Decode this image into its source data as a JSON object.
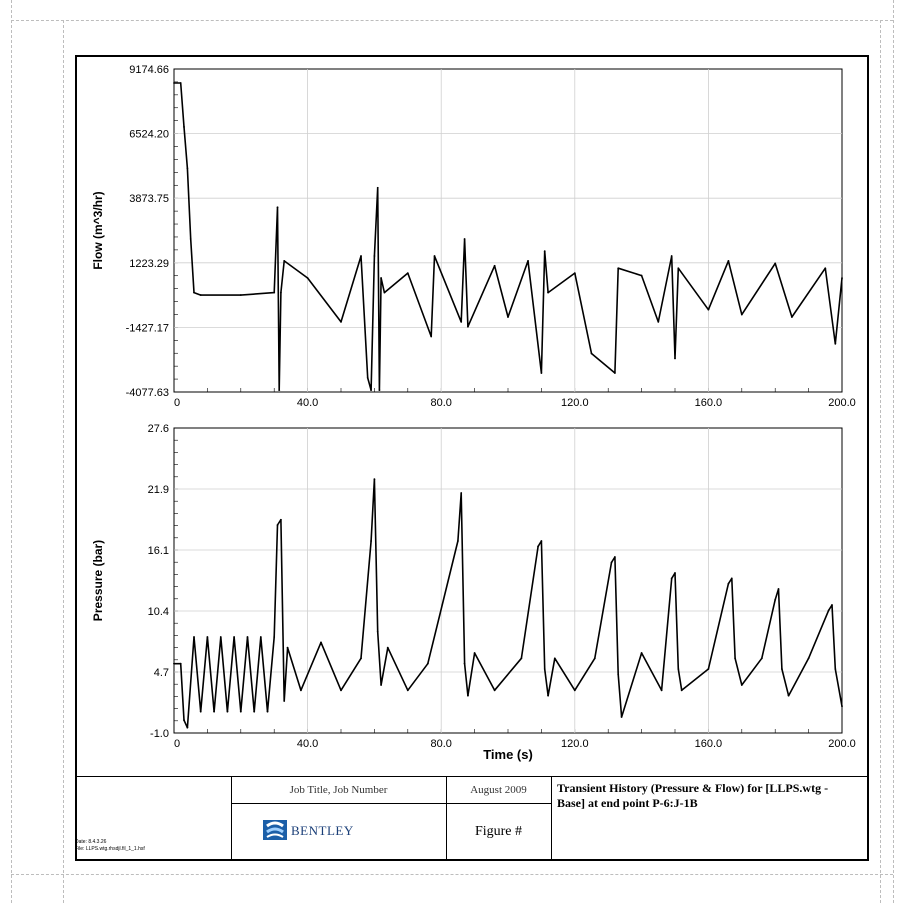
{
  "chart_data": [
    {
      "type": "line",
      "ylabel": "Flow (m^3/hr)",
      "xlabel": "",
      "xlim": [
        0,
        200
      ],
      "ylim": [
        -4077.63,
        9174.66
      ],
      "x_ticks": [
        "40.0",
        "80.0",
        "120.0",
        "160.0",
        "200.0"
      ],
      "y_ticks": [
        "9174.66",
        "6524.20",
        "3873.75",
        "1223.29",
        "-1427.17",
        "-4077.63"
      ],
      "grid": true,
      "series": [
        {
          "x": [
            0,
            2,
            3,
            4,
            5,
            6,
            8,
            20,
            30,
            31,
            31.5,
            32,
            33,
            40,
            50,
            56,
            58,
            59,
            60,
            61,
            61.5,
            62,
            63,
            70,
            77,
            78,
            86,
            87,
            88,
            96,
            100,
            106,
            110,
            111,
            112,
            120,
            125,
            132,
            133,
            140,
            145,
            149,
            150,
            151,
            160,
            166,
            170,
            180,
            185,
            195,
            198,
            200
          ],
          "y": [
            8600,
            8600,
            6800,
            5100,
            2200,
            0,
            -100,
            -100,
            0,
            3500,
            -4000,
            0,
            1300,
            600,
            -1200,
            1500,
            -3500,
            -4000,
            1500,
            4300,
            -4000,
            600,
            0,
            800,
            -1800,
            1500,
            -1200,
            2200,
            -1400,
            1100,
            -1000,
            1300,
            -3300,
            1700,
            0,
            800,
            -2500,
            -3300,
            1000,
            700,
            -1200,
            1500,
            -2700,
            1000,
            -700,
            1300,
            -900,
            1200,
            -1000,
            1000,
            -2100,
            600
          ]
        }
      ]
    },
    {
      "type": "line",
      "ylabel": "Pressure (bar)",
      "xlabel": "Time (s)",
      "xlim": [
        0,
        200
      ],
      "ylim": [
        -1.0,
        27.6
      ],
      "x_ticks": [
        "40.0",
        "80.0",
        "120.0",
        "160.0",
        "200.0"
      ],
      "y_ticks": [
        "27.6",
        "21.9",
        "16.1",
        "10.4",
        "4.7",
        "-1.0"
      ],
      "grid": true,
      "series": [
        {
          "x": [
            0,
            2,
            3,
            4,
            6,
            8,
            10,
            12,
            14,
            16,
            18,
            20,
            22,
            24,
            26,
            28,
            30,
            31,
            32,
            33,
            34,
            38,
            44,
            50,
            56,
            59,
            60,
            61,
            62,
            64,
            70,
            76,
            85,
            86,
            87,
            88,
            90,
            96,
            104,
            109,
            110,
            111,
            112,
            114,
            120,
            126,
            131,
            132,
            133,
            134,
            140,
            146,
            149,
            150,
            151,
            152,
            160,
            166,
            167,
            168,
            170,
            176,
            180,
            181,
            182,
            184,
            190,
            196,
            197,
            198,
            200
          ],
          "y": [
            5.5,
            5.5,
            0.2,
            -0.5,
            8.0,
            1.0,
            8.0,
            1.0,
            8.0,
            1.0,
            8.0,
            1.0,
            8.0,
            1.0,
            8.0,
            1.0,
            8.0,
            18.5,
            19.0,
            2.0,
            7.0,
            3.0,
            7.5,
            3.0,
            6.0,
            17.0,
            22.8,
            8.5,
            3.5,
            7.0,
            3.0,
            5.5,
            17.0,
            21.5,
            5.5,
            2.5,
            6.5,
            3.0,
            6.0,
            16.5,
            17.0,
            5.0,
            2.5,
            6.0,
            3.0,
            6.0,
            15.0,
            15.5,
            4.5,
            0.5,
            6.5,
            3.0,
            13.5,
            14.0,
            5.0,
            3.0,
            5.0,
            13.0,
            13.5,
            6.0,
            3.5,
            6.0,
            11.5,
            12.5,
            5.0,
            2.5,
            6.0,
            10.5,
            11.0,
            5.0,
            1.5
          ]
        }
      ]
    }
  ],
  "title_block": {
    "job_title": "Job Title, Job Number",
    "date": "August 2009",
    "logo_text": "BENTLEY",
    "figure_label": "Figure #",
    "description": "Transient History (Pressure & Flow) for [LLPS.wtg - Base] at end point P-6:J-1B",
    "small_print_1": "Date: 8.4.3.26",
    "small_print_2": "File: LLPS.wtg.rhsdjl.fil_1_1.hsf"
  }
}
